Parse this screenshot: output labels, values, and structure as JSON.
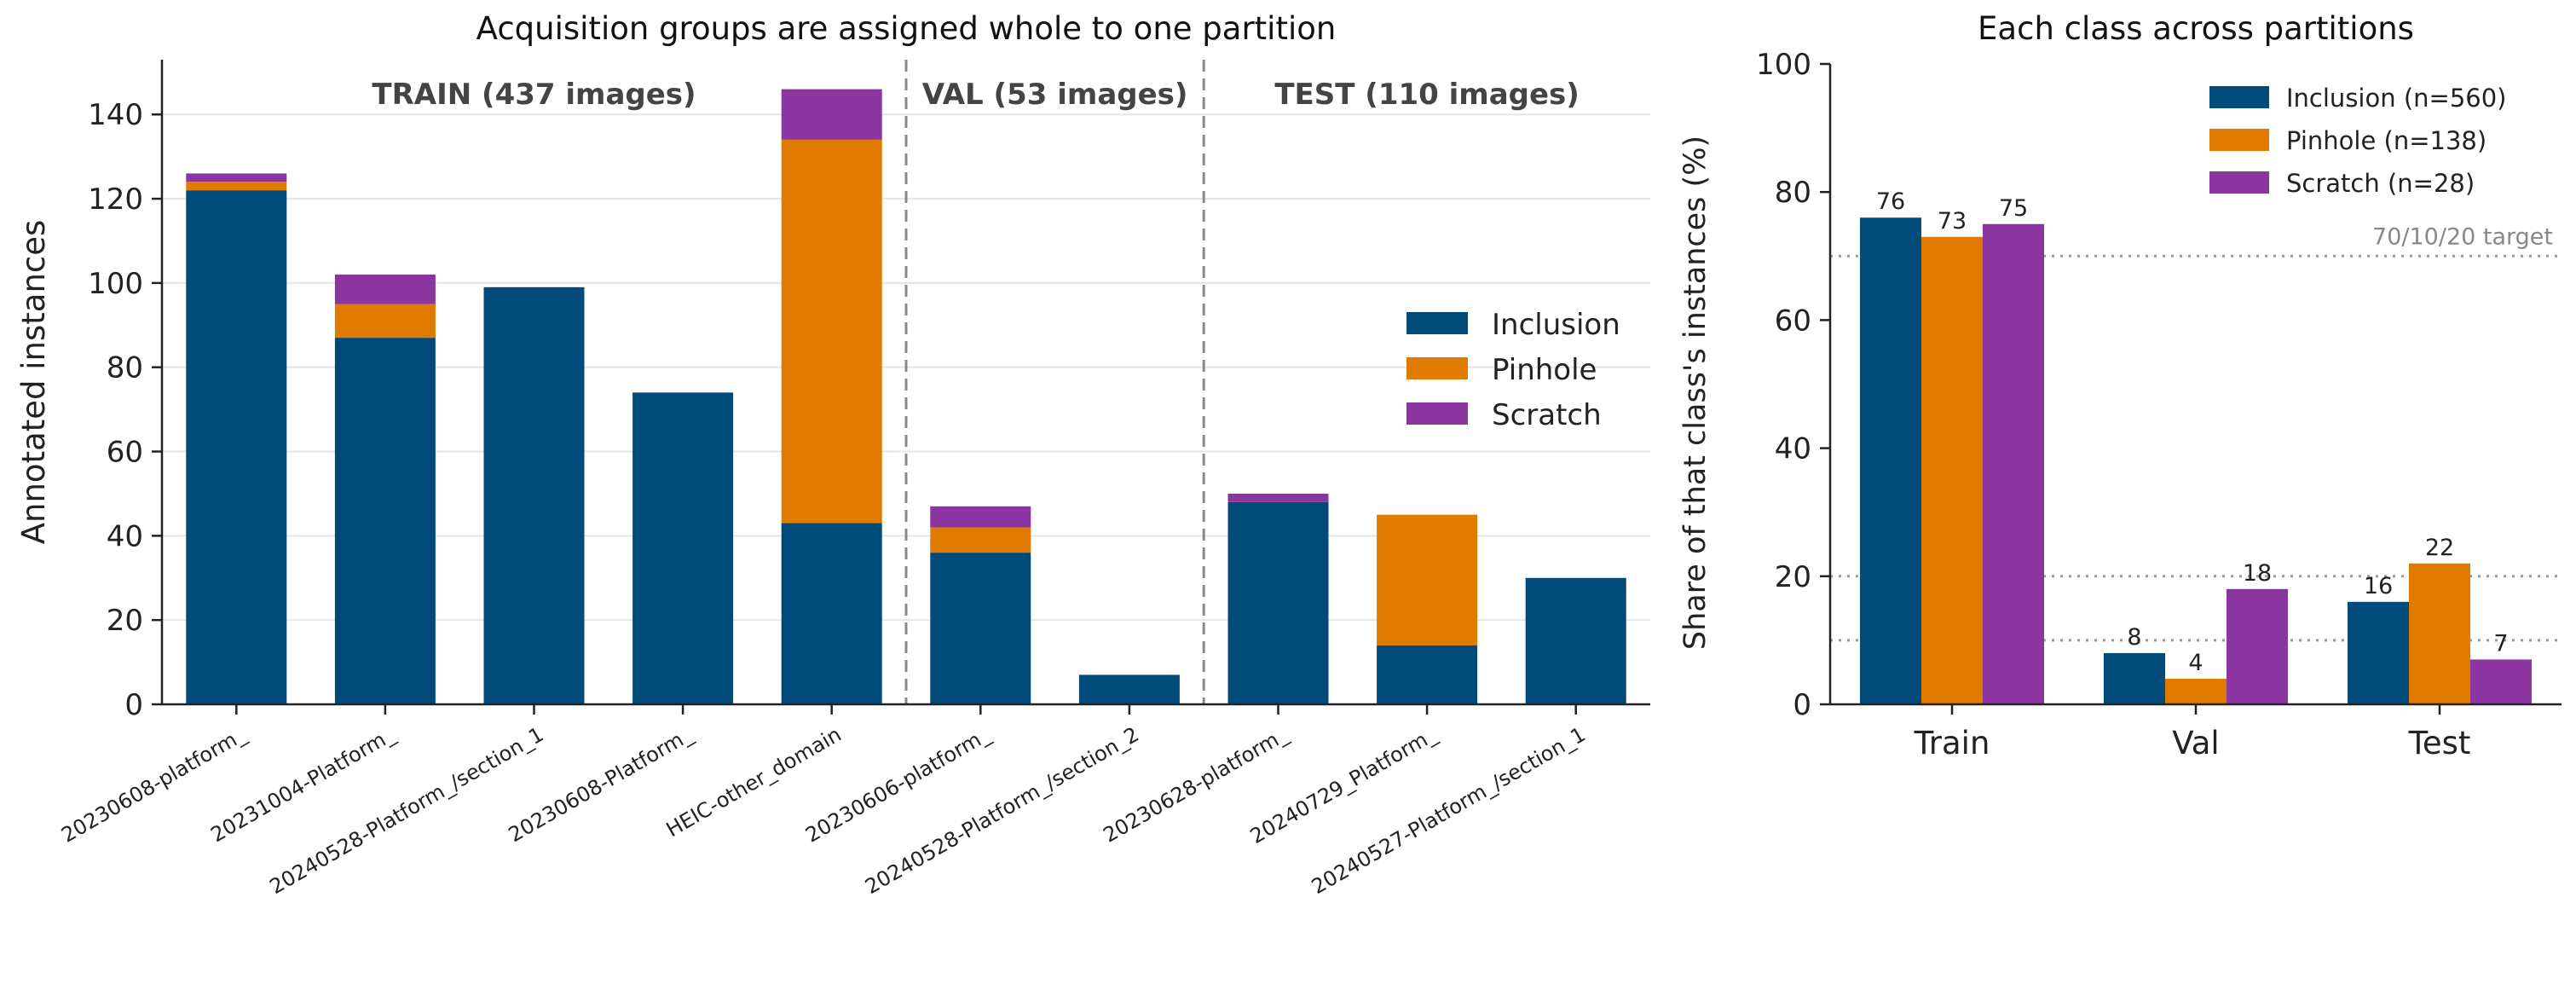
{
  "colors": {
    "Inclusion": "#004b7a",
    "Pinhole": "#e07b00",
    "Scratch": "#8b35a0",
    "axis": "#222222",
    "grid": "#e6e6e6",
    "divider": "#888888",
    "target_line": "#9a9a9a",
    "partition_label": "#444444"
  },
  "chart_data": [
    {
      "type": "bar",
      "stacked": true,
      "title": "Acquisition groups are assigned whole to one partition",
      "xlabel": "",
      "ylabel": "Annotated instances",
      "ylim": [
        0,
        153
      ],
      "yticks": [
        0,
        20,
        40,
        60,
        80,
        100,
        120,
        140
      ],
      "grid": true,
      "legend_position": "center-right",
      "categories": [
        "20230608-platform_",
        "20231004-Platform_",
        "20240528-Platform_/section_1",
        "20230608-Platform_",
        "HEIC-other_domain",
        "20230606-platform_",
        "20240528-Platform_/section_2",
        "20230628-platform_",
        "20240729_Platform_",
        "20240527-Platform_/section_1"
      ],
      "series": [
        {
          "name": "Inclusion",
          "values": [
            122,
            87,
            99,
            74,
            43,
            36,
            7,
            48,
            14,
            30
          ]
        },
        {
          "name": "Pinhole",
          "values": [
            2,
            8,
            0,
            0,
            91,
            6,
            0,
            0,
            31,
            0
          ]
        },
        {
          "name": "Scratch",
          "values": [
            2,
            7,
            0,
            0,
            12,
            5,
            0,
            2,
            0,
            0
          ]
        }
      ],
      "partitions": [
        {
          "label": "TRAIN  (437 images)",
          "start_index": 0,
          "end_index": 4
        },
        {
          "label": "VAL  (53 images)",
          "start_index": 5,
          "end_index": 6
        },
        {
          "label": "TEST  (110 images)",
          "start_index": 7,
          "end_index": 9
        }
      ]
    },
    {
      "type": "bar",
      "stacked": false,
      "title": "Each class across partitions",
      "xlabel": "",
      "ylabel": "Share of that class's instances (%)",
      "ylim": [
        0,
        100
      ],
      "yticks": [
        0,
        20,
        40,
        60,
        80,
        100
      ],
      "grid": false,
      "legend_position": "top-right",
      "categories": [
        "Train",
        "Val",
        "Test"
      ],
      "series": [
        {
          "name": "Inclusion (n=560)",
          "values": [
            76,
            8,
            16
          ],
          "labels": [
            "76",
            "8",
            "16"
          ]
        },
        {
          "name": "Pinhole (n=138)",
          "values": [
            73,
            4,
            22
          ],
          "labels": [
            "73",
            "4",
            "22"
          ]
        },
        {
          "name": "Scratch (n=28)",
          "values": [
            75,
            18,
            7
          ],
          "labels": [
            "75",
            "18",
            "7"
          ]
        }
      ],
      "reference_lines": [
        70,
        20,
        10
      ],
      "reference_label": "70/10/20 target"
    }
  ]
}
